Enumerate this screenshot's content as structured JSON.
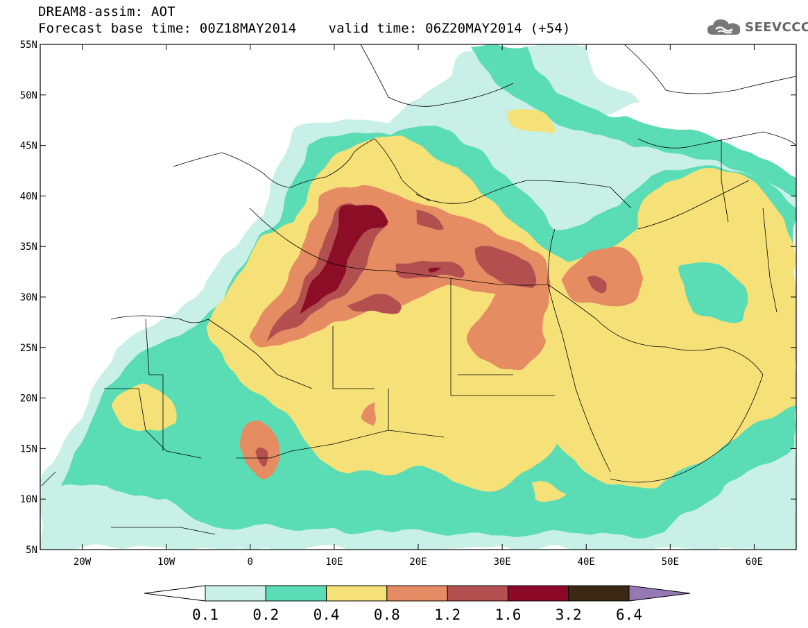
{
  "header": {
    "line1": "DREAM8-assim: AOT",
    "base_label": "Forecast base time: 00Z18MAY2014",
    "valid_label": "valid time: 06Z20MAY2014 (+54)"
  },
  "logo": {
    "text": "SEEVCCC",
    "icon": "cloud-icon",
    "color": "#666666"
  },
  "map": {
    "variable": "AOT",
    "lon_range": [
      -25,
      65
    ],
    "lat_range": [
      5,
      55
    ],
    "lat_ticks": [
      "5N",
      "10N",
      "15N",
      "20N",
      "25N",
      "30N",
      "35N",
      "40N",
      "45N",
      "50N",
      "55N"
    ],
    "lon_ticks": [
      "20W",
      "10W",
      "0",
      "10E",
      "20E",
      "30E",
      "40E",
      "50E",
      "60E"
    ]
  },
  "legend": {
    "levels": [
      "0.1",
      "0.2",
      "0.4",
      "0.8",
      "1.2",
      "1.6",
      "3.2",
      "6.4"
    ],
    "colors": [
      "#c8f0e6",
      "#5adcb4",
      "#f5e178",
      "#e68c64",
      "#b45050",
      "#8c0a28",
      "#3c2814",
      "#9678b4"
    ],
    "under_color": "#ffffff"
  }
}
